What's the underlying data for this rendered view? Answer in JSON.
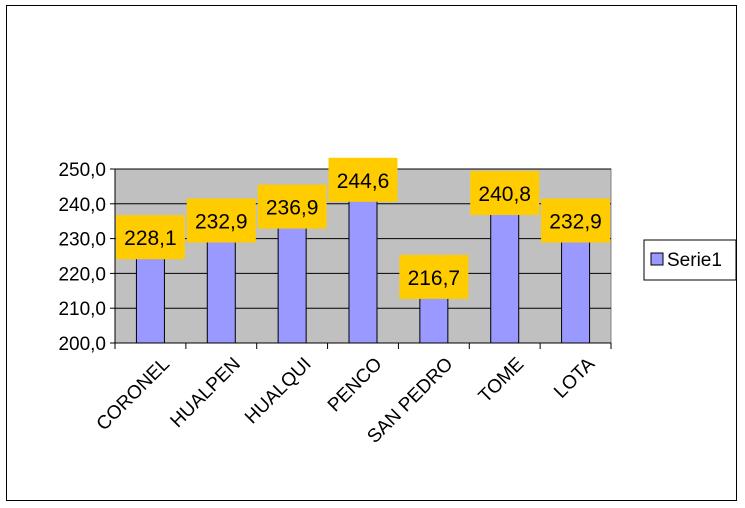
{
  "chart_data": {
    "type": "bar",
    "categories": [
      "CORONEL",
      "HUALPEN",
      "HUALQUI",
      "PENCO",
      "SAN PEDRO",
      "TOME",
      "LOTA"
    ],
    "series": [
      {
        "name": "Serie1",
        "values": [
          228.1,
          232.9,
          236.9,
          244.6,
          216.7,
          240.8,
          232.9
        ]
      }
    ],
    "data_labels": [
      "228,1",
      "232,9",
      "236,9",
      "244,6",
      "216,7",
      "240,8",
      "232,9"
    ],
    "y_ticks": [
      200,
      210,
      220,
      230,
      240,
      250
    ],
    "y_tick_labels": [
      "200,0",
      "210,0",
      "220,0",
      "230,0",
      "240,0",
      "250,0"
    ],
    "ylim": [
      200,
      250
    ],
    "grid": true,
    "legend": "right",
    "title": "",
    "xlabel": "",
    "ylabel": ""
  },
  "colors": {
    "plot_background": "#c0c0c0",
    "bar_fill": "#9999ff",
    "bar_stroke": "#000000",
    "data_label_bg": "#ffcc00",
    "gridline": "#000000"
  }
}
